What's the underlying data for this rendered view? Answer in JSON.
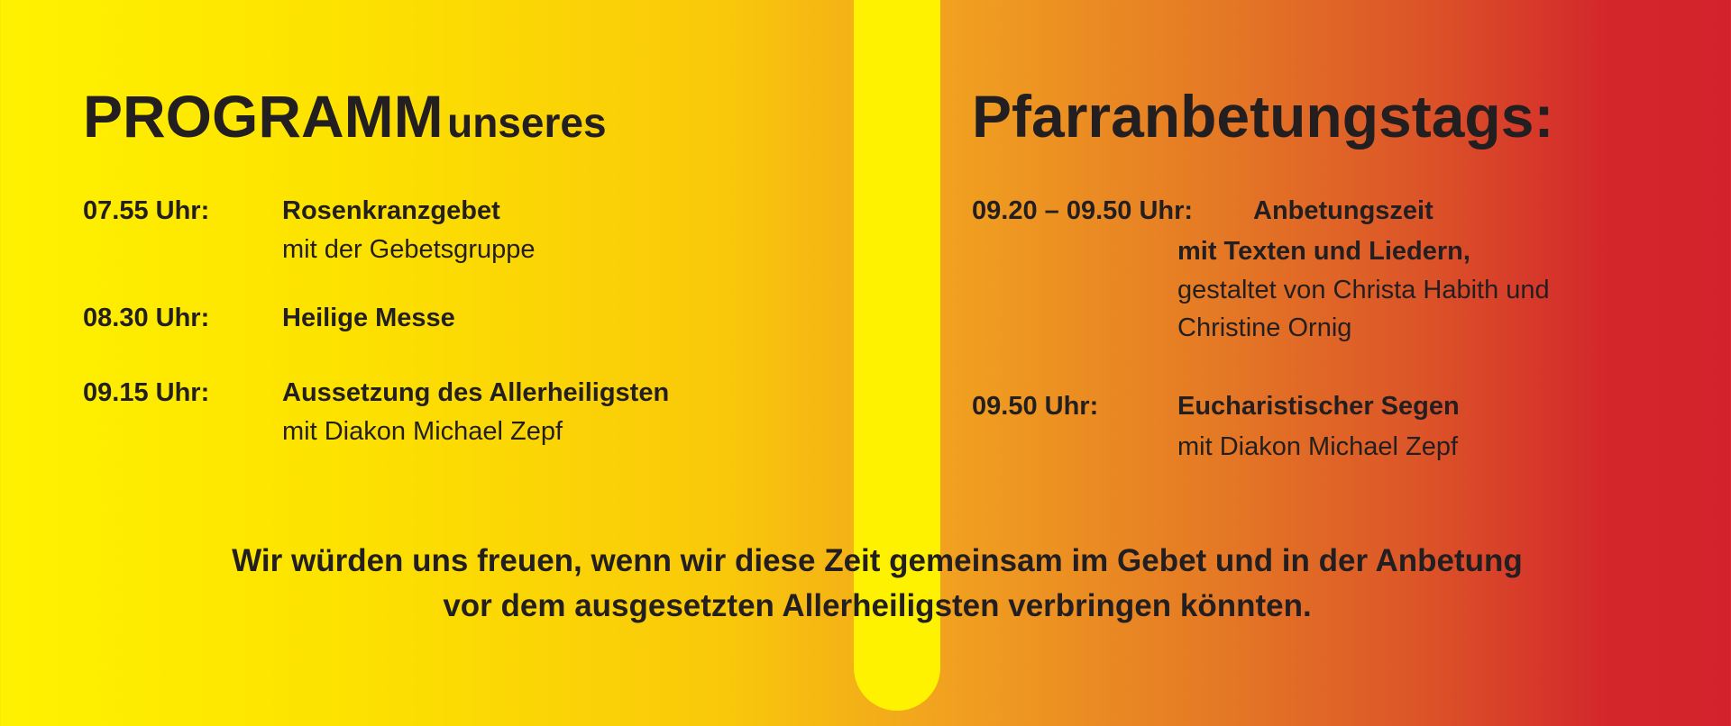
{
  "colors": {
    "left": "#fff200",
    "middle": "#f1a020",
    "right": "#d3222b",
    "stripe": "#fff200",
    "text": "#231f20"
  },
  "title": {
    "main": "PROGRAMM",
    "sub": "unseres",
    "right": "Pfarranbetungstags:"
  },
  "left_program": [
    {
      "time": "07.55 Uhr:",
      "title": "Rosenkranzgebet",
      "detail": "mit der Gebetsgruppe"
    },
    {
      "time": "08.30 Uhr:",
      "title": "Heilige Messe"
    },
    {
      "time": "09.15 Uhr:",
      "title": "Aussetzung des Allerheiligsten",
      "detail": "mit Diakon Michael Zepf"
    }
  ],
  "right_program": [
    {
      "time": "09.20 – 09.50 Uhr:",
      "title": "Anbetungszeit",
      "title2": "mit Texten und Liedern,",
      "detail": "gestaltet von Christa Habith und",
      "detail2": "Christine Ornig"
    },
    {
      "time": "09.50 Uhr:",
      "title": "Eucharistischer Segen",
      "detail": "mit Diakon Michael Zepf"
    }
  ],
  "footer": {
    "line1": "Wir würden uns freuen, wenn wir diese Zeit gemeinsam im Gebet und in der Anbetung",
    "line2": "vor dem ausgesetzten Allerheiligsten verbringen könnten."
  }
}
